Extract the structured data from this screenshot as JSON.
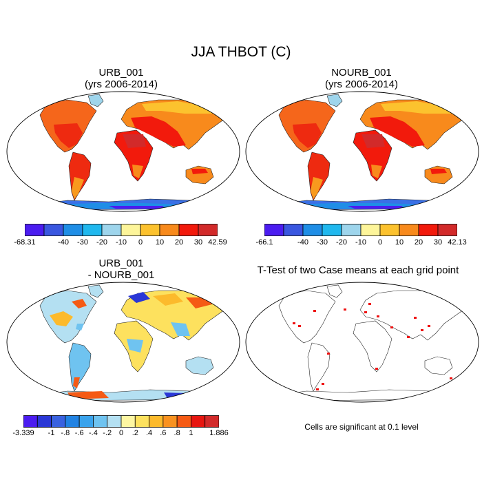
{
  "figure": {
    "title": "JJA THBOT (C)",
    "note": "Cells are significant at 0.1 level"
  },
  "panels": {
    "urb": {
      "title": "URB_001",
      "subtitle": "(yrs 2006-2014)"
    },
    "nourb": {
      "title": "NOURB_001",
      "subtitle": "(yrs 2006-2014)"
    },
    "diff": {
      "title": "URB_001",
      "subtitle": "- NOURB_001"
    },
    "ttest": {
      "title": "T-Test of two Case means at each grid point"
    }
  },
  "chart_data": [
    {
      "type": "heatmap",
      "name": "URB_001",
      "title": "URB_001",
      "subtitle": "(yrs 2006-2014)",
      "colorbar": {
        "min_label": "-68.31",
        "max_label": "42.59",
        "labels": [
          "-68.31",
          "-40",
          "-30",
          "-20",
          "-10",
          "0",
          "10",
          "20",
          "30",
          "42.59"
        ],
        "colors": [
          "#4b1cf0",
          "#3a57e0",
          "#1f8ee6",
          "#20b8ee",
          "#9ed5ec",
          "#fdf59a",
          "#fcc22e",
          "#f88a1c",
          "#f21a0c",
          "#d22a2a"
        ]
      }
    },
    {
      "type": "heatmap",
      "name": "NOURB_001",
      "title": "NOURB_001",
      "subtitle": "(yrs 2006-2014)",
      "colorbar": {
        "min_label": "-66.1",
        "max_label": "42.13",
        "labels": [
          "-66.1",
          "-40",
          "-30",
          "-20",
          "-10",
          "0",
          "10",
          "20",
          "30",
          "42.13"
        ],
        "colors": [
          "#4b1cf0",
          "#3a57e0",
          "#1f8ee6",
          "#20b8ee",
          "#9ed5ec",
          "#fdf59a",
          "#fcc22e",
          "#f88a1c",
          "#f21a0c",
          "#d22a2a"
        ]
      }
    },
    {
      "type": "heatmap",
      "name": "URB_001 - NOURB_001",
      "title": "URB_001",
      "subtitle": "- NOURB_001",
      "colorbar": {
        "min_label": "-3.339",
        "max_label": "1.886",
        "labels": [
          "-3.339",
          "-1",
          "-.8",
          "-.6",
          "-.4",
          "-.2",
          "0",
          ".2",
          ".4",
          ".6",
          ".8",
          "1",
          "1.886"
        ],
        "colors": [
          "#4b1cf0",
          "#2a37d6",
          "#3a62e0",
          "#2283e3",
          "#3aa3ec",
          "#6fc3f0",
          "#b4e0f2",
          "#fdf6a2",
          "#fde15e",
          "#fcba2c",
          "#f99220",
          "#f55a14",
          "#e71610",
          "#d22a2a"
        ]
      }
    },
    {
      "type": "heatmap",
      "name": "T-Test",
      "title": "T-Test of two Case means at each grid point",
      "significance_level": 0.1,
      "significant_color": "#ee1111"
    }
  ]
}
